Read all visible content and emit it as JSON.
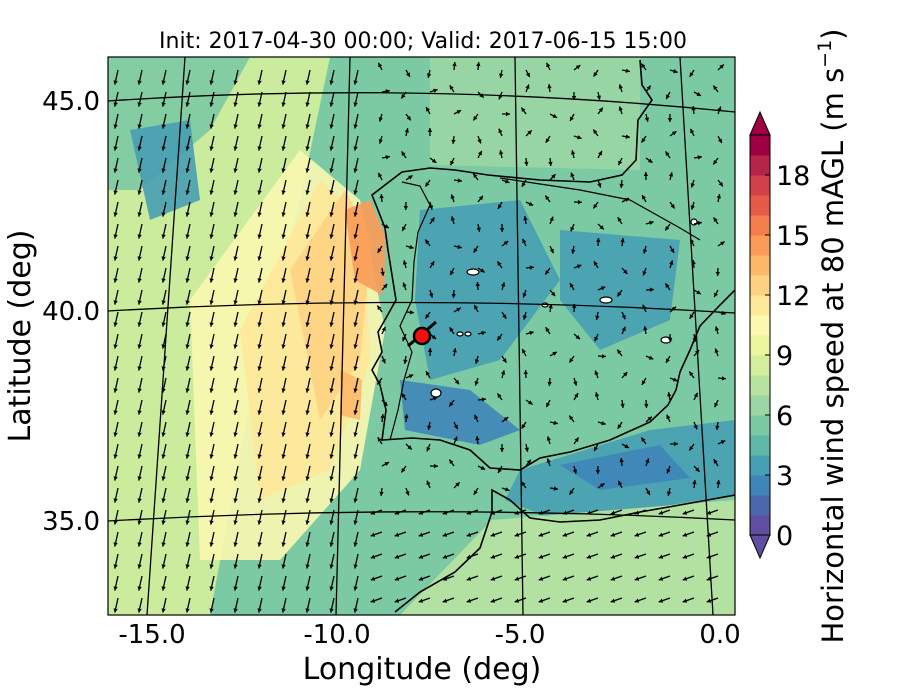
{
  "title": "Init: 2017-04-30 00:00; Valid: 2017-06-15 15:00",
  "x_axis": {
    "label": "Longitude (deg)",
    "ticks": [
      "-15.0",
      "-10.0",
      "-5.0",
      "0.0"
    ]
  },
  "y_axis": {
    "label": "Latitude (deg)",
    "ticks": [
      "45.0",
      "40.0",
      "35.0"
    ]
  },
  "colorbar": {
    "label": "Horizontal wind speed at 80 mAGL (m s",
    "label_superscript": "−1",
    "label_close": ")",
    "ticks": [
      "0",
      "3",
      "6",
      "9",
      "12",
      "15",
      "18"
    ],
    "levels": [
      0,
      1,
      2,
      3,
      4,
      5,
      6,
      7,
      8,
      9,
      10,
      11,
      12,
      13,
      14,
      15,
      16,
      17,
      18,
      19,
      20
    ],
    "colors": [
      "#5e4fa2",
      "#4c68ad",
      "#3f85b8",
      "#479fb3",
      "#5fb8a8",
      "#7ccaa4",
      "#9bd6a4",
      "#b8e3a1",
      "#d4ee9c",
      "#eaf59c",
      "#fbf8b0",
      "#fee89a",
      "#fed283",
      "#fdb86a",
      "#fa9b58",
      "#f47d4c",
      "#e45c48",
      "#d0414b",
      "#b52549",
      "#9e0142"
    ]
  },
  "marker": {
    "lon": -7.6,
    "lat": 39.4,
    "color": "#ee1111"
  },
  "colors": {
    "land_outline": "#000000",
    "graticule": "#000000",
    "vector": "#000000"
  }
}
